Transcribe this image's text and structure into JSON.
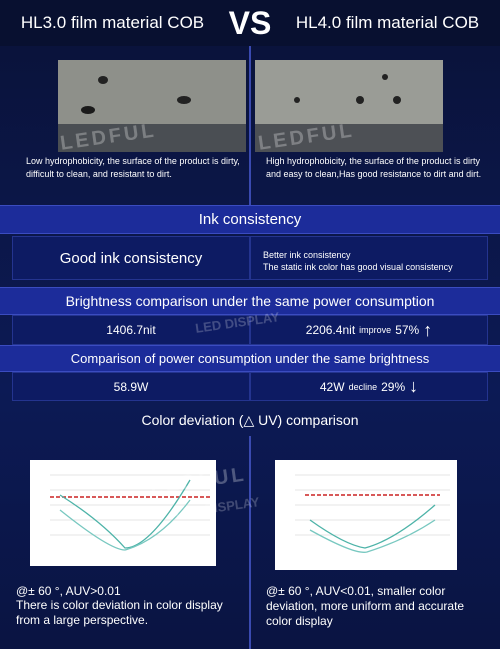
{
  "header": {
    "left_title": "HL3.0 film material COB",
    "vs": "VS",
    "right_title": "HL4.0 film material COB"
  },
  "watermark": {
    "brand": "LEDFUL",
    "sub": "LED DISPLAY"
  },
  "photos": {
    "left_caption": "Low hydrophobicity, the surface of the product is dirty, difficult to clean, and resistant to dirt.",
    "right_caption": "High hydrophobicity, the surface of the product is dirty and easy to clean,Has good resistance to dirt and dirt."
  },
  "ink": {
    "title": "Ink consistency",
    "left": "Good ink consistency",
    "right_line1": "Better ink consistency",
    "right_line2": "The static ink color has good visual consistency"
  },
  "brightness": {
    "title": "Brightness comparison under the same power consumption",
    "left": "1406.7nit",
    "right": "2206.4nit",
    "change_word": "improve",
    "change": "57%",
    "arrow": "↑"
  },
  "power": {
    "title": "Comparison of power consumption under the same brightness",
    "left": "58.9W",
    "right": "42W",
    "change_word": "decline",
    "change": "29%",
    "arrow": "↓"
  },
  "deviation": {
    "title": "Color deviation (△ UV) comparison",
    "left_line1": "@± 60 °, AUV>0.01",
    "left_line2": "There is color deviation in color display from a large perspective.",
    "right_text": "@± 60 °, AUV<0.01, smaller color deviation, more uniform and accurate color display"
  }
}
